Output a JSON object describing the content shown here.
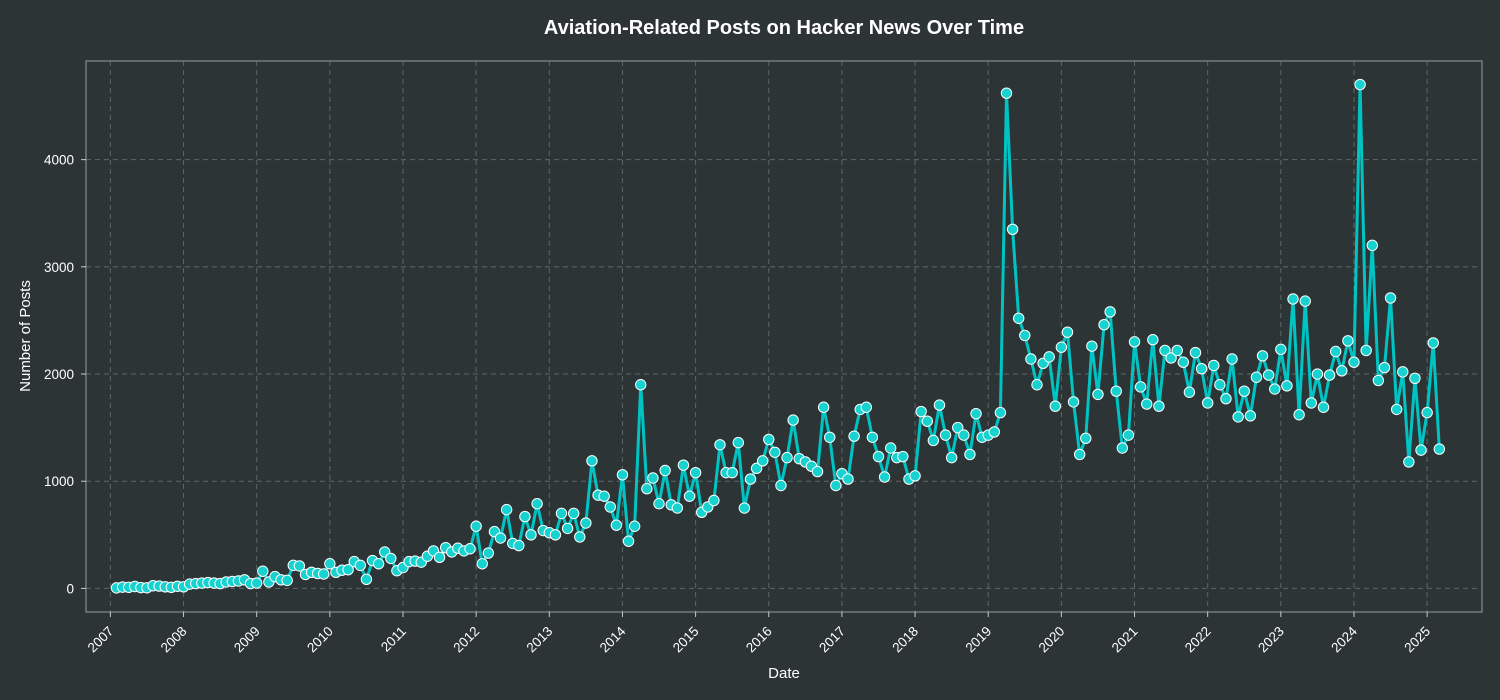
{
  "chart_data": {
    "type": "line",
    "title": "Aviation-Related Posts on Hacker News Over Time",
    "xlabel": "Date",
    "ylabel": "Number of Posts",
    "x_ticks": [
      "2007",
      "2008",
      "2009",
      "2010",
      "2011",
      "2012",
      "2013",
      "2014",
      "2015",
      "2016",
      "2017",
      "2018",
      "2019",
      "2020",
      "2021",
      "2022",
      "2023",
      "2024",
      "2025"
    ],
    "y_ticks": [
      0,
      1000,
      2000,
      3000,
      4000
    ],
    "ylim": [
      -220,
      4920
    ],
    "xlim": [
      "2006-09",
      "2025-10"
    ],
    "grid": true,
    "legend": "none",
    "marker": "circle",
    "colors": {
      "line": "#00c4c4",
      "marker_fill": "#17d2cf",
      "marker_edge": "#ffffff",
      "background": "#2c3436"
    },
    "series": [
      {
        "start": "2007-02",
        "interval": "month",
        "values": [
          5,
          12,
          10,
          18,
          8,
          6,
          25,
          22,
          15,
          10,
          20,
          15,
          40,
          45,
          50,
          55,
          50,
          45,
          60,
          65,
          70,
          80,
          45,
          50,
          160,
          60,
          110,
          80,
          75,
          215,
          210,
          130,
          150,
          140,
          135,
          230,
          150,
          170,
          175,
          250,
          215,
          85,
          260,
          230,
          340,
          280,
          165,
          195,
          250,
          255,
          245,
          300,
          350,
          290,
          380,
          340,
          375,
          350,
          370,
          580,
          230,
          330,
          530,
          470,
          735,
          420,
          400,
          670,
          500,
          790,
          540,
          520,
          500,
          700,
          560,
          700,
          480,
          610,
          1190,
          870,
          860,
          760,
          590,
          1060,
          440,
          580,
          1900,
          930,
          1030,
          790,
          1100,
          780,
          750,
          1150,
          860,
          1080,
          710,
          760,
          820,
          1340,
          1080,
          1080,
          1360,
          750,
          1020,
          1120,
          1190,
          1390,
          1270,
          960,
          1220,
          1570,
          1210,
          1180,
          1140,
          1090,
          1690,
          1410,
          960,
          1070,
          1020,
          1420,
          1670,
          1690,
          1410,
          1230,
          1040,
          1310,
          1220,
          1230,
          1020,
          1050,
          1650,
          1560,
          1380,
          1710,
          1430,
          1220,
          1500,
          1430,
          1250,
          1630,
          1410,
          1430,
          1460,
          1640,
          4620,
          3350,
          2520,
          2360,
          2140,
          1900,
          2100,
          2160,
          1700,
          2250,
          2390,
          1740,
          1250,
          1400,
          2260,
          1810,
          2460,
          2580,
          1840,
          1310,
          1430,
          2300,
          1880,
          1720,
          2320,
          1700,
          2220,
          2150,
          2220,
          2110,
          1830,
          2200,
          2050,
          1730,
          2080,
          1900,
          1770,
          2140,
          1600,
          1840,
          1610,
          1970,
          2170,
          1990,
          1860,
          2230,
          1890,
          2700,
          1620,
          2680,
          1730,
          2000,
          1690,
          1990,
          2210,
          2030,
          2310,
          2110,
          4700,
          2220,
          3200,
          1940,
          2060,
          2710,
          1670,
          2020,
          1180,
          1960,
          1290,
          1640,
          2290,
          1300
        ]
      }
    ]
  }
}
